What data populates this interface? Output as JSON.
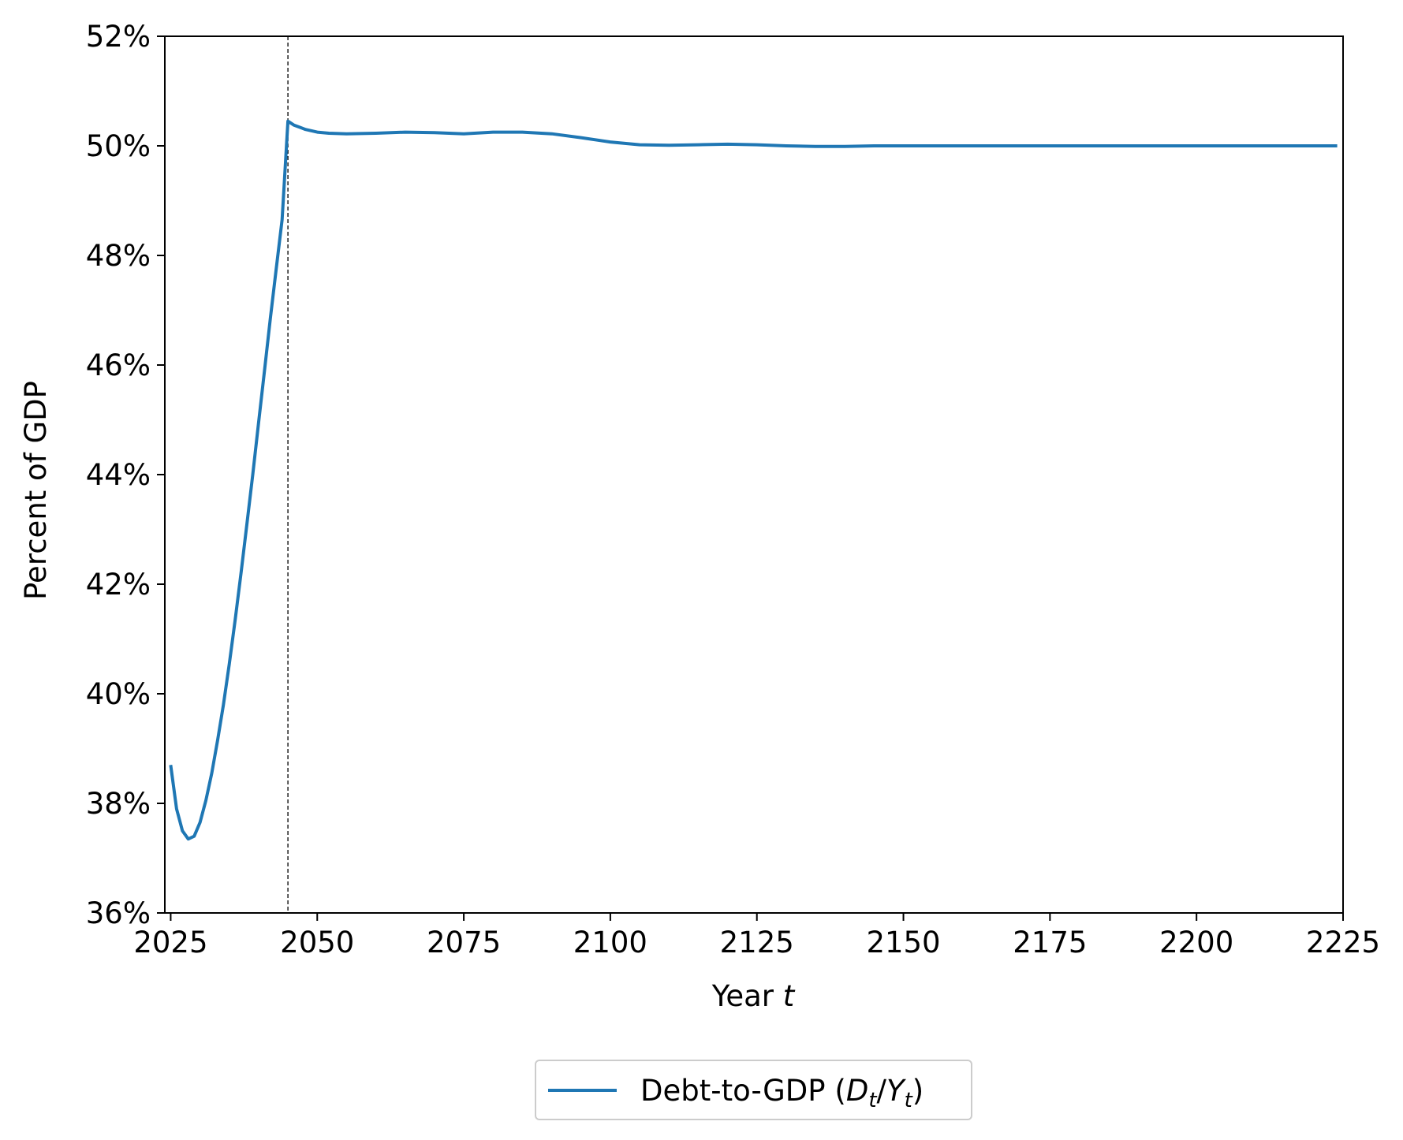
{
  "colors": {
    "series": "#1f77b4",
    "axis": "#000000",
    "legend_border": "#cccccc",
    "background": "#ffffff"
  },
  "chart_data": {
    "type": "line",
    "title": "",
    "xlabel": "Year",
    "xlabel_var": "t",
    "ylabel": "Percent of GDP",
    "xlim": [
      2024,
      2225
    ],
    "ylim": [
      36,
      52
    ],
    "x_ticks": [
      2025,
      2050,
      2075,
      2100,
      2125,
      2150,
      2175,
      2200,
      2225
    ],
    "x_tick_labels": [
      "2025",
      "2050",
      "2075",
      "2100",
      "2125",
      "2150",
      "2175",
      "2200",
      "2225"
    ],
    "y_ticks": [
      36,
      38,
      40,
      42,
      44,
      46,
      48,
      50,
      52
    ],
    "y_tick_labels": [
      "36%",
      "38%",
      "40%",
      "42%",
      "44%",
      "46%",
      "48%",
      "50%",
      "52%"
    ],
    "grid": false,
    "legend_position": "bottom-center-below",
    "vline": {
      "x": 2045,
      "style": "dashed"
    },
    "series": [
      {
        "name": "Debt-to-GDP (D/Y)",
        "legend_prefix": "Debt-to-GDP (",
        "legend_var1": "D",
        "legend_sub1": "t",
        "legend_slash": "/",
        "legend_var2": "Y",
        "legend_sub2": "t",
        "legend_suffix": ")",
        "x": [
          2025,
          2026,
          2027,
          2028,
          2029,
          2030,
          2031,
          2032,
          2033,
          2034,
          2035,
          2036,
          2037,
          2038,
          2039,
          2040,
          2041,
          2042,
          2043,
          2044,
          2045,
          2046,
          2048,
          2050,
          2052,
          2055,
          2060,
          2065,
          2070,
          2075,
          2080,
          2085,
          2090,
          2095,
          2100,
          2105,
          2110,
          2115,
          2120,
          2125,
          2130,
          2135,
          2140,
          2145,
          2150,
          2160,
          2170,
          2180,
          2190,
          2200,
          2210,
          2220,
          2224
        ],
        "y": [
          38.7,
          37.9,
          37.5,
          37.35,
          37.4,
          37.65,
          38.05,
          38.55,
          39.15,
          39.8,
          40.55,
          41.35,
          42.2,
          43.1,
          44.0,
          44.95,
          45.9,
          46.85,
          47.75,
          48.65,
          50.45,
          50.38,
          50.3,
          50.25,
          50.23,
          50.22,
          50.23,
          50.25,
          50.24,
          50.22,
          50.25,
          50.25,
          50.22,
          50.15,
          50.07,
          50.02,
          50.01,
          50.02,
          50.03,
          50.02,
          50.0,
          49.99,
          49.99,
          50.0,
          50.0,
          50.0,
          50.0,
          50.0,
          50.0,
          50.0,
          50.0,
          50.0,
          50.0
        ]
      }
    ]
  }
}
